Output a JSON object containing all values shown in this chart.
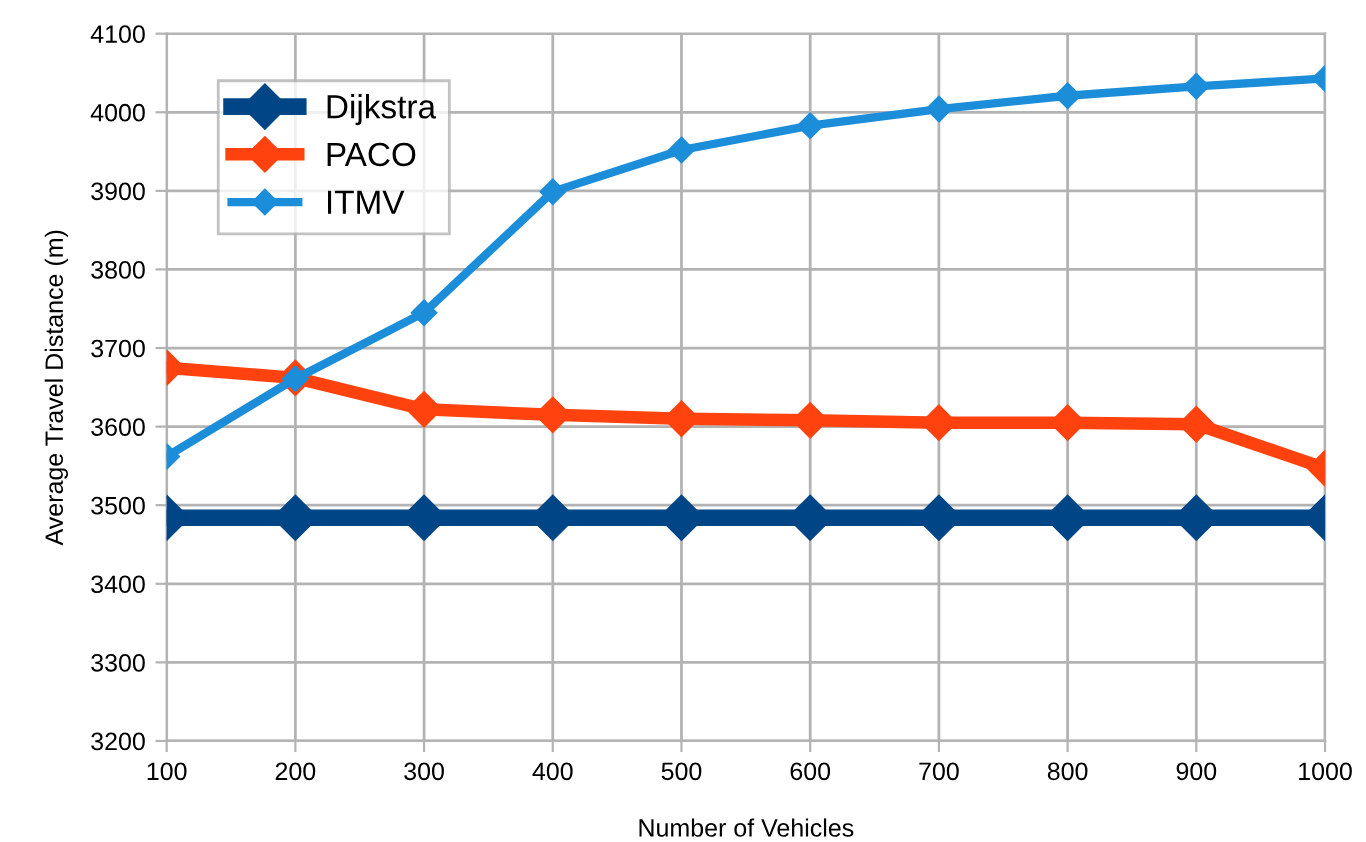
{
  "chart_data": {
    "type": "line",
    "xlabel": "Number of Vehicles",
    "ylabel": "Average Travel Distance (m)",
    "x": [
      100,
      200,
      300,
      400,
      500,
      600,
      700,
      800,
      900,
      1000
    ],
    "series": [
      {
        "name": "Dijkstra",
        "color": "#004586",
        "values": [
          3484,
          3484,
          3484,
          3484,
          3484,
          3484,
          3484,
          3484,
          3484,
          3484
        ]
      },
      {
        "name": "PACO",
        "color": "#ff420e",
        "values": [
          3675,
          3662,
          3622,
          3615,
          3610,
          3608,
          3605,
          3605,
          3603,
          3547
        ]
      },
      {
        "name": "ITMV",
        "color": "#1c8dd9",
        "values": [
          3562,
          3661,
          3745,
          3899,
          3952,
          3983,
          4004,
          4021,
          4033,
          4043
        ]
      }
    ],
    "xlim": [
      100,
      1000
    ],
    "xticks": [
      100,
      200,
      300,
      400,
      500,
      600,
      700,
      800,
      900,
      1000
    ],
    "ylim": [
      3200,
      4100
    ],
    "yticks": [
      3200,
      3300,
      3400,
      3500,
      3600,
      3700,
      3800,
      3900,
      4000,
      4100
    ],
    "grid": true,
    "legend": "top left",
    "marker": "diamond",
    "line_style": "solid"
  }
}
